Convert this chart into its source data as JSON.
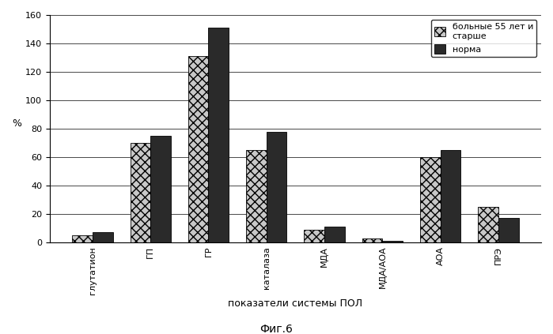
{
  "categories": [
    "глутатион",
    "ГП",
    "ГР",
    "каталаза",
    "МДА",
    "МДА/АОА",
    "АОА",
    "ПРЭ"
  ],
  "series1_label": "больные 55 лет и\nстарше",
  "series2_label": "норма",
  "series1_values": [
    5,
    70,
    131,
    65,
    9,
    3,
    60,
    25
  ],
  "series2_values": [
    7,
    75,
    151,
    78,
    11,
    1,
    65,
    17
  ],
  "series1_color": "#c8c8c8",
  "series2_color": "#2a2a2a",
  "series1_hatch": "xxx",
  "series2_hatch": "",
  "ylabel": "%",
  "xlabel": "показатели системы ПОЛ",
  "ylim": [
    0,
    160
  ],
  "yticks": [
    0,
    20,
    40,
    60,
    80,
    100,
    120,
    140,
    160
  ],
  "caption": "Фиг.6",
  "background_color": "#ffffff",
  "bar_width": 0.35,
  "legend_fontsize": 8,
  "axis_fontsize": 9,
  "tick_fontsize": 8,
  "xlabel_fontsize": 9,
  "caption_fontsize": 10
}
